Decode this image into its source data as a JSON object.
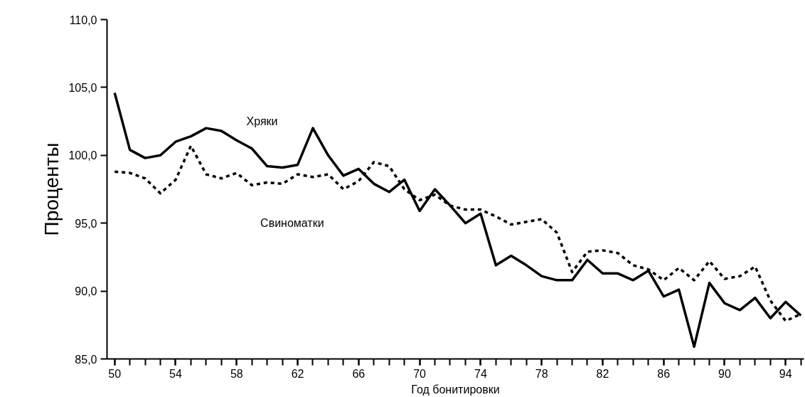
{
  "chart_data": {
    "type": "line",
    "xlabel": "Год бонитировки",
    "ylabel": "Проценты",
    "x": [
      50,
      51,
      52,
      53,
      54,
      55,
      56,
      57,
      58,
      59,
      60,
      61,
      62,
      63,
      64,
      65,
      66,
      67,
      68,
      69,
      70,
      71,
      72,
      73,
      74,
      75,
      76,
      77,
      78,
      79,
      80,
      81,
      82,
      83,
      84,
      85,
      86,
      87,
      88,
      89,
      90,
      91,
      92,
      93,
      94,
      95
    ],
    "series": [
      {
        "name": "Хряки",
        "color": "#000000",
        "line_style": "solid",
        "values": [
          104.6,
          100.4,
          99.8,
          100.0,
          101.0,
          101.4,
          102.0,
          101.8,
          101.1,
          100.5,
          99.2,
          99.1,
          99.3,
          102.0,
          100.0,
          98.5,
          99.0,
          97.9,
          97.3,
          98.2,
          95.9,
          97.5,
          96.3,
          95.0,
          95.7,
          91.9,
          92.6,
          91.9,
          91.1,
          90.8,
          90.8,
          92.3,
          91.3,
          91.3,
          90.8,
          91.5,
          89.6,
          90.1,
          85.9,
          90.6,
          89.1,
          88.6,
          89.5,
          88.0,
          89.2,
          88.2
        ]
      },
      {
        "name": "Свиноматки",
        "color": "#000000",
        "line_style": "dotted",
        "values": [
          98.8,
          98.7,
          98.3,
          97.2,
          98.2,
          100.7,
          98.6,
          98.3,
          98.7,
          97.8,
          98.0,
          97.9,
          98.6,
          98.4,
          98.6,
          97.5,
          98.1,
          99.5,
          99.2,
          97.5,
          96.7,
          97.1,
          96.3,
          96.0,
          96.0,
          95.5,
          94.9,
          95.1,
          95.3,
          94.3,
          91.4,
          92.9,
          93.0,
          92.8,
          91.9,
          91.6,
          90.8,
          91.7,
          90.8,
          92.2,
          90.9,
          91.1,
          91.8,
          89.3,
          87.8,
          88.3
        ]
      }
    ],
    "xlim": [
      49.5,
      95.2
    ],
    "xticks": [
      50,
      54,
      58,
      62,
      66,
      70,
      74,
      78,
      82,
      86,
      90,
      94
    ],
    "ylim": [
      85,
      110
    ],
    "yticks": [
      {
        "value": 85,
        "label": "85,0"
      },
      {
        "value": 90,
        "label": "90,0"
      },
      {
        "value": 95,
        "label": "95,0"
      },
      {
        "value": 100,
        "label": "100,0"
      },
      {
        "value": 105,
        "label": "105,0"
      },
      {
        "value": 110,
        "label": "110,0"
      }
    ],
    "grid": false,
    "legend": false
  }
}
